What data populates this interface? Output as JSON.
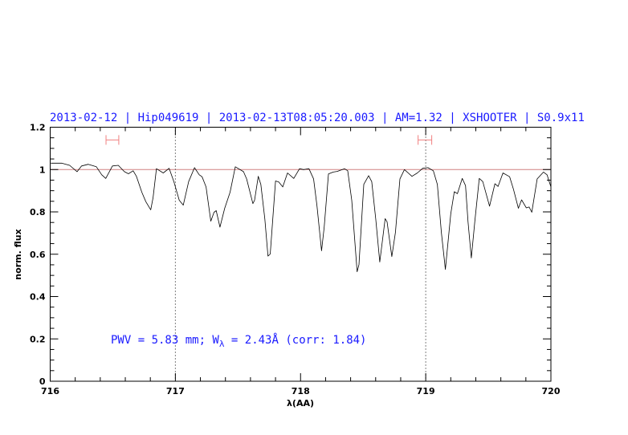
{
  "chart_data": {
    "type": "line",
    "title": "2013-02-12 | Hip049619 | 2013-02-13T08:05:20.003 | AM=1.32 | XSHOOTER | S0.9x11",
    "xlabel": "λ(AA)",
    "ylabel": "norm. flux",
    "xlim": [
      716,
      720
    ],
    "ylim": [
      0,
      1.2
    ],
    "x_ticks": [
      716,
      717,
      718,
      719,
      720
    ],
    "x_tick_labels": [
      "716",
      "717",
      "718",
      "719",
      "720"
    ],
    "y_ticks": [
      0,
      0.2,
      0.4,
      0.6,
      0.8,
      1,
      1.2
    ],
    "y_tick_labels": [
      "0",
      "0.2",
      "0.4",
      "0.6",
      "0.8",
      "1",
      "1.2"
    ],
    "grid": false,
    "reference_line_y": 1.0,
    "vertical_markers": [
      717,
      719
    ],
    "intervals": [
      [
        716.446,
        716.548
      ],
      [
        718.939,
        719.048
      ]
    ],
    "interval_level": 1.14,
    "annotation": {
      "prefix": "PWV = 5.83 mm; W",
      "subscript": "λ",
      "suffix": " = 2.43Å (corr: 1.84)"
    },
    "colors": {
      "spectrum": "#000000",
      "reference": "#d08080",
      "intervals": "#f08080",
      "text": "#1a1aff"
    },
    "series": [
      {
        "x": [
          716.005,
          716.091,
          716.155,
          716.215,
          716.251,
          716.304,
          716.369,
          716.412,
          716.444,
          716.497,
          716.544,
          716.593,
          716.625,
          716.663,
          716.689,
          716.732,
          716.764,
          716.803,
          716.822,
          716.849,
          716.903,
          716.95,
          716.988,
          717.031,
          717.063,
          717.106,
          717.153,
          717.191,
          717.213,
          717.245,
          717.283,
          717.309,
          717.326,
          717.356,
          717.394,
          717.437,
          717.479,
          717.544,
          717.569,
          717.619,
          717.633,
          717.662,
          717.683,
          717.715,
          717.74,
          717.758,
          717.8,
          717.826,
          717.858,
          717.896,
          717.946,
          717.992,
          718.024,
          718.067,
          718.104,
          718.131,
          718.168,
          718.189,
          718.223,
          718.26,
          718.292,
          718.351,
          718.377,
          718.409,
          718.452,
          718.467,
          718.505,
          718.544,
          718.569,
          718.601,
          718.633,
          718.676,
          718.691,
          718.729,
          718.758,
          718.794,
          718.83,
          718.89,
          718.933,
          718.976,
          719.018,
          719.061,
          719.093,
          719.125,
          719.157,
          719.2,
          719.228,
          719.253,
          719.292,
          719.318,
          719.338,
          719.364,
          719.392,
          719.428,
          719.456,
          719.51,
          719.553,
          719.578,
          719.617,
          719.67,
          719.702,
          719.74,
          719.766,
          719.804,
          719.826,
          719.847,
          719.89,
          719.941,
          719.969,
          720.0
        ],
        "y": [
          1.03,
          1.03,
          1.02,
          0.99,
          1.017,
          1.025,
          1.013,
          0.975,
          0.958,
          1.017,
          1.02,
          0.99,
          0.98,
          0.994,
          0.968,
          0.893,
          0.848,
          0.81,
          0.867,
          1.004,
          0.984,
          1.006,
          0.943,
          0.855,
          0.832,
          0.943,
          1.009,
          0.975,
          0.966,
          0.918,
          0.756,
          0.798,
          0.806,
          0.728,
          0.817,
          0.893,
          1.013,
          0.99,
          0.956,
          0.839,
          0.855,
          0.968,
          0.93,
          0.766,
          0.591,
          0.601,
          0.946,
          0.941,
          0.918,
          0.984,
          0.958,
          1.004,
          1.0,
          1.004,
          0.956,
          0.829,
          0.616,
          0.728,
          0.979,
          0.988,
          0.991,
          1.004,
          0.994,
          0.855,
          0.517,
          0.551,
          0.93,
          0.971,
          0.943,
          0.766,
          0.563,
          0.768,
          0.753,
          0.589,
          0.703,
          0.956,
          1.0,
          0.968,
          0.984,
          1.006,
          1.009,
          0.994,
          0.93,
          0.703,
          0.528,
          0.791,
          0.895,
          0.886,
          0.958,
          0.924,
          0.753,
          0.582,
          0.753,
          0.958,
          0.943,
          0.827,
          0.933,
          0.92,
          0.984,
          0.966,
          0.905,
          0.817,
          0.857,
          0.819,
          0.823,
          0.798,
          0.956,
          0.988,
          0.975,
          0.918
        ]
      }
    ]
  }
}
